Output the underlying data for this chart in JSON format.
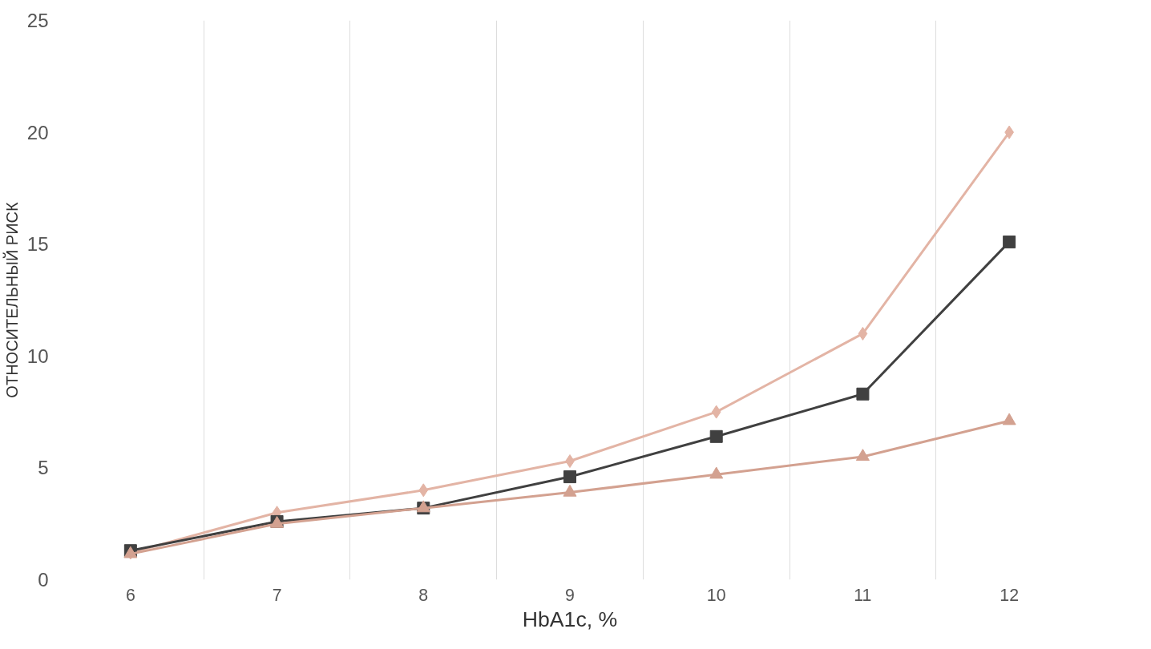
{
  "chart_data": {
    "type": "line",
    "xlabel": "HbA1c, %",
    "ylabel": "ОТНОСИТЕЛЬНЫЙ РИСК",
    "categories": [
      "6",
      "7",
      "8",
      "9",
      "10",
      "11",
      "12"
    ],
    "series": [
      {
        "color": "#e3b4a5",
        "marker": "diamond",
        "values": [
          1.2,
          3.0,
          4.0,
          5.3,
          7.5,
          11.0,
          20.0
        ]
      },
      {
        "color": "#404040",
        "marker": "square",
        "values": [
          1.3,
          2.6,
          3.2,
          4.6,
          6.4,
          8.3,
          15.1
        ]
      },
      {
        "color": "#d3a190",
        "marker": "triangle",
        "values": [
          1.15,
          2.5,
          3.2,
          3.9,
          4.7,
          5.5,
          7.1
        ]
      }
    ],
    "ylim": [
      0,
      25
    ],
    "yticks": [
      0,
      5,
      10,
      15,
      20,
      25
    ],
    "grid": "x"
  }
}
